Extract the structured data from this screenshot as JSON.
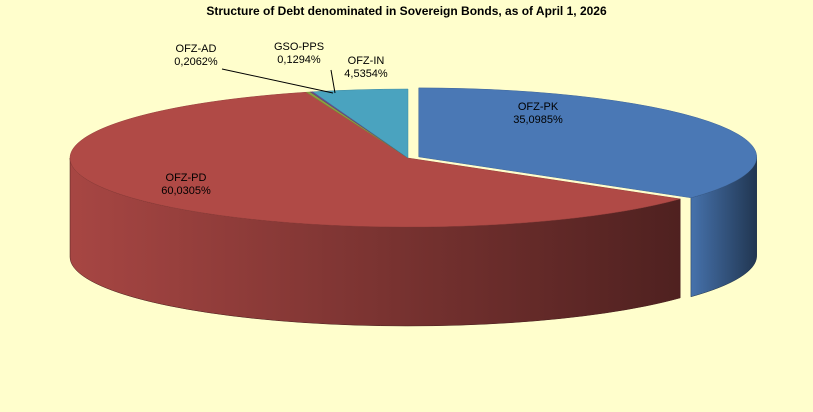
{
  "colors": {
    "background": "#fffecc"
  },
  "chart_data": {
    "type": "pie",
    "title": "Structure of Debt denominated in Sovereign Bonds, as of April 1, 2026",
    "slices": [
      {
        "name": "OFZ-PK",
        "value": 35.0985,
        "label": "35,0985%",
        "color": "#4a78b5"
      },
      {
        "name": "OFZ-PD",
        "value": 60.0305,
        "label": "60,0305%",
        "color": "#b04a46"
      },
      {
        "name": "OFZ-AD",
        "value": 0.2062,
        "label": "0,2062%",
        "color": "#8a9f3f"
      },
      {
        "name": "GSO-PPS",
        "value": 0.1294,
        "label": "0,1294%",
        "color": "#6a4a8a"
      },
      {
        "name": "OFZ-IN",
        "value": 4.5354,
        "label": "4,5354%",
        "color": "#4aa3bf"
      }
    ],
    "style": "3d-exploded-pie"
  }
}
